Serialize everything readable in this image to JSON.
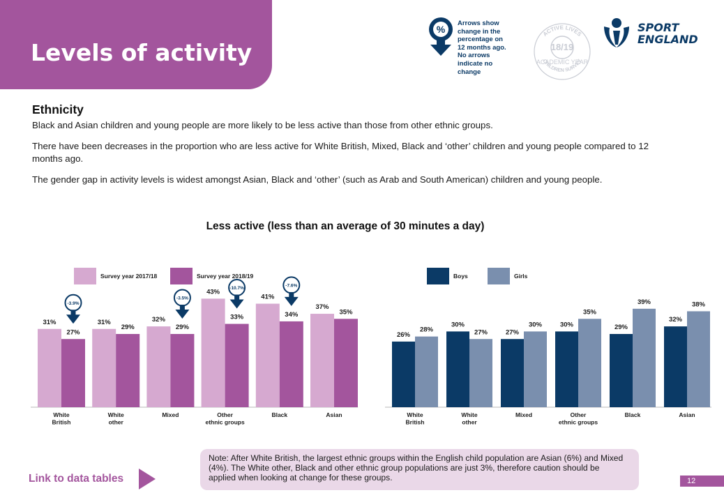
{
  "header": {
    "title": "Levels of activity",
    "arrow_legend_symbol": "%",
    "arrow_legend_lines": [
      "Arrows show",
      "change in the",
      "percentage on",
      "12 months ago.",
      "No arrows",
      "indicate no",
      "change"
    ],
    "seal": {
      "top": "ACTIVE LIVES",
      "year": "18/19",
      "middle": "ACADEMIC YEAR",
      "bottom": "CHILDREN SURVEY"
    },
    "logo_lines": [
      "SPORT",
      "ENGLAND"
    ]
  },
  "section": {
    "heading": "Ethnicity",
    "paragraphs": [
      "Black and Asian children and young people are more likely to be less active than those from other ethnic groups.",
      "There have been decreases in the proportion who are less active for White British, Mixed, Black and ‘other’ children and young people compared to 12 months ago.",
      "The gender gap in activity levels is widest amongst Asian, Black and ‘other’ (such as Arab and South American) children and young people."
    ]
  },
  "chart_title": "Less active (less than an average of 30 minutes a day)",
  "colors": {
    "brand_purple": "#a3559d",
    "light_purple": "#d6a9d0",
    "navy": "#0b3a66",
    "slate_blue": "#7a8fae",
    "note_bg": "#ead8e8"
  },
  "chart_data": [
    {
      "type": "bar",
      "categories": [
        "White\nBritish",
        "White\nother",
        "Mixed",
        "Other\nethnic groups",
        "Black",
        "Asian"
      ],
      "series": [
        {
          "name": "Survey year 2017/18",
          "values": [
            31,
            31,
            32,
            43,
            41,
            37
          ],
          "labels": [
            "31%",
            "31%",
            "32%",
            "43%",
            "41%",
            "37%"
          ],
          "color": "#d6a9d0"
        },
        {
          "name": "Survey year 2018/19",
          "values": [
            27,
            29,
            29,
            33,
            34,
            35
          ],
          "labels": [
            "27%",
            "29%",
            "29%",
            "33%",
            "34%",
            "35%"
          ],
          "color": "#a3559d"
        }
      ],
      "change_arrows": [
        {
          "category_index": 0,
          "label": "-3.9%"
        },
        {
          "category_index": 2,
          "label": "-3.5%"
        },
        {
          "category_index": 3,
          "label": "-10.7%"
        },
        {
          "category_index": 4,
          "label": "-7.6%"
        }
      ],
      "ylim": [
        0,
        45
      ],
      "legend_placement": "top-left"
    },
    {
      "type": "bar",
      "categories": [
        "White\nBritish",
        "White\nother",
        "Mixed",
        "Other\nethnic groups",
        "Black",
        "Asian"
      ],
      "series": [
        {
          "name": "Boys",
          "values": [
            26,
            30,
            27,
            30,
            29,
            32
          ],
          "labels": [
            "26%",
            "30%",
            "27%",
            "30%",
            "29%",
            "32%"
          ],
          "color": "#0b3a66"
        },
        {
          "name": "Girls",
          "values": [
            28,
            27,
            30,
            35,
            39,
            38
          ],
          "labels": [
            "28%",
            "27%",
            "30%",
            "35%",
            "39%",
            "38%"
          ],
          "color": "#7a8fae"
        }
      ],
      "ylim": [
        0,
        45
      ],
      "legend_placement": "top-left"
    }
  ],
  "note": "Note: After White British, the largest ethnic groups within the English child population are Asian (6%) and Mixed (4%). The White other, Black and other ethnic group populations are just 3%, therefore caution should be applied when looking at change for these groups.",
  "footer": {
    "link_label": "Link to data tables",
    "page_number": "12"
  }
}
